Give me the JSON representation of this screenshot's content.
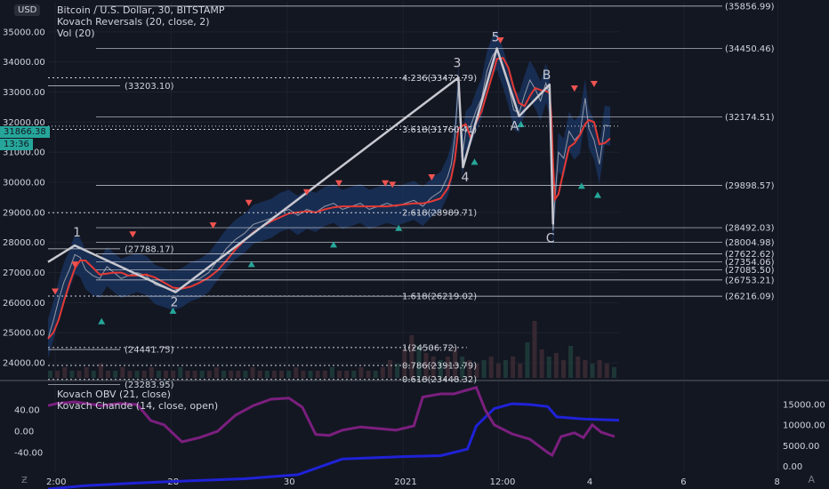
{
  "header": {
    "title": "Bitcoin / U.S. Dollar, 30, BITSTAMP",
    "indicator1": "Kovach Reversals (20, close, 2)",
    "indicator2": "Vol (20)",
    "currency": "USD"
  },
  "sub_header": {
    "indicator1": "Kovach OBV (21, close)",
    "indicator2": "Kovach Chande (14, close, open)"
  },
  "price_tag": {
    "price": "31866.38",
    "countdown": "13:36"
  },
  "colors": {
    "background": "#131722",
    "ma": "#e53935",
    "band": "#1e3f7a",
    "obv": "#1f22d6",
    "chande": "#7b1f7e",
    "zigzag": "#c8c8d0",
    "up": "#26a69a",
    "down": "#ef5350"
  },
  "chart_data": {
    "type": "line",
    "price_axis": {
      "ylim": [
        23500,
        36000
      ],
      "ticks": [
        "35000.00",
        "34000.00",
        "33000.00",
        "32000.00",
        "31000.00",
        "30000.00",
        "29000.00",
        "28000.00",
        "27000.00",
        "26000.00",
        "25000.00",
        "24000.00"
      ]
    },
    "x_ticks": [
      "2:00",
      "28",
      "30",
      "2021",
      "12:00",
      "4",
      "6",
      "8"
    ],
    "price_levels_right": [
      "(35856.99)",
      "(34450.46)",
      "(32174.51)",
      "(29898.57)",
      "(28492.03)",
      "(28004.98)",
      "(27622.62)",
      "(27354.06)",
      "(27085.50)",
      "(26753.21)",
      "(26216.09)"
    ],
    "price_levels_right_values": [
      35856.99,
      34450.46,
      32174.51,
      29898.57,
      28492.03,
      28004.98,
      27622.62,
      27354.06,
      27085.5,
      26753.21,
      26216.09
    ],
    "price_levels_left": [
      "(33203.10)",
      "(27788.17)",
      "(24441.75)",
      "(23283.95)"
    ],
    "price_levels_left_values": [
      33203.1,
      27788.17,
      24441.75,
      23283.95
    ],
    "fib_levels": [
      {
        "label": "4.236(33472.79)",
        "value": 33472.79
      },
      {
        "label": "3.618(31760.41)",
        "value": 31760.41
      },
      {
        "label": "2.618(28989.71)",
        "value": 28989.71
      },
      {
        "label": "1.618(26219.02)",
        "value": 26219.02
      },
      {
        "label": "1(24506.72)",
        "value": 24506.72
      },
      {
        "label": "0.786(23913.79)",
        "value": 23913.79
      },
      {
        "label": "0.618(23448.32)",
        "value": 23448.32
      }
    ],
    "zigzag": [
      {
        "t": 0,
        "price": 27350
      },
      {
        "t": 30,
        "price": 27900,
        "label": "1"
      },
      {
        "t": 143,
        "price": 26350,
        "label": "2"
      },
      {
        "t": 460,
        "price": 33480,
        "label": "3"
      },
      {
        "t": 465,
        "price": 30500,
        "label": "4"
      },
      {
        "t": 503,
        "price": 34450,
        "label": "5"
      },
      {
        "t": 528,
        "price": 32200,
        "label": "A"
      },
      {
        "t": 562,
        "price": 33250,
        "label": "B"
      },
      {
        "t": 566,
        "price": 28600,
        "label": "C"
      }
    ],
    "price_path": [
      [
        0,
        24800
      ],
      [
        6,
        25400
      ],
      [
        12,
        26100
      ],
      [
        18,
        26700
      ],
      [
        24,
        27100
      ],
      [
        30,
        27600
      ],
      [
        36,
        27500
      ],
      [
        42,
        27100
      ],
      [
        50,
        26900
      ],
      [
        58,
        26800
      ],
      [
        66,
        27200
      ],
      [
        74,
        27000
      ],
      [
        82,
        26800
      ],
      [
        90,
        26900
      ],
      [
        100,
        27000
      ],
      [
        110,
        26900
      ],
      [
        120,
        26600
      ],
      [
        130,
        26500
      ],
      [
        140,
        26400
      ],
      [
        150,
        26500
      ],
      [
        160,
        26700
      ],
      [
        170,
        26800
      ],
      [
        180,
        27000
      ],
      [
        190,
        27400
      ],
      [
        200,
        27800
      ],
      [
        210,
        28100
      ],
      [
        220,
        28300
      ],
      [
        230,
        28600
      ],
      [
        240,
        28700
      ],
      [
        250,
        28800
      ],
      [
        260,
        29000
      ],
      [
        270,
        29100
      ],
      [
        280,
        28900
      ],
      [
        290,
        29100
      ],
      [
        300,
        29000
      ],
      [
        310,
        29200
      ],
      [
        320,
        29300
      ],
      [
        330,
        29100
      ],
      [
        340,
        29200
      ],
      [
        350,
        29300
      ],
      [
        360,
        29100
      ],
      [
        370,
        29200
      ],
      [
        380,
        29300
      ],
      [
        390,
        29200
      ],
      [
        400,
        29300
      ],
      [
        410,
        29400
      ],
      [
        420,
        29200
      ],
      [
        430,
        29500
      ],
      [
        440,
        29700
      ],
      [
        448,
        30200
      ],
      [
        452,
        30600
      ],
      [
        456,
        31500
      ],
      [
        460,
        33300
      ],
      [
        464,
        30800
      ],
      [
        468,
        31700
      ],
      [
        474,
        31900
      ],
      [
        480,
        32400
      ],
      [
        486,
        32800
      ],
      [
        492,
        33700
      ],
      [
        498,
        34200
      ],
      [
        503,
        34400
      ],
      [
        510,
        33800
      ],
      [
        516,
        33200
      ],
      [
        522,
        32400
      ],
      [
        528,
        32300
      ],
      [
        534,
        32900
      ],
      [
        540,
        33400
      ],
      [
        546,
        33100
      ],
      [
        552,
        32700
      ],
      [
        558,
        33300
      ],
      [
        562,
        32900
      ],
      [
        564,
        30500
      ],
      [
        566,
        28400
      ],
      [
        568,
        29400
      ],
      [
        572,
        31000
      ],
      [
        578,
        30800
      ],
      [
        584,
        31700
      ],
      [
        590,
        31400
      ],
      [
        596,
        31600
      ],
      [
        602,
        32800
      ],
      [
        606,
        31800
      ],
      [
        612,
        31400
      ],
      [
        618,
        30600
      ],
      [
        624,
        31900
      ],
      [
        630,
        31866
      ]
    ],
    "volume": [
      2,
      2,
      3,
      2,
      2,
      3,
      2,
      4,
      2,
      2,
      3,
      2,
      2,
      2,
      3,
      2,
      2,
      2,
      3,
      2,
      2,
      2,
      2,
      3,
      2,
      2,
      2,
      2,
      3,
      2,
      2,
      2,
      2,
      2,
      3,
      2,
      2,
      2,
      2,
      3,
      2,
      2,
      2,
      3,
      2,
      2,
      3,
      5,
      4,
      8,
      12,
      9,
      7,
      6,
      5,
      6,
      8,
      6,
      5,
      4,
      5,
      6,
      4,
      5,
      6,
      4,
      10,
      16,
      8,
      6,
      7,
      5,
      9,
      6,
      5,
      4,
      5,
      4,
      3
    ],
    "obv": [
      [
        0,
        -5500
      ],
      [
        40,
        -4700
      ],
      [
        100,
        -4000
      ],
      [
        160,
        -3500
      ],
      [
        220,
        -3000
      ],
      [
        280,
        -2000
      ],
      [
        330,
        1800
      ],
      [
        400,
        2400
      ],
      [
        440,
        2600
      ],
      [
        470,
        4200
      ],
      [
        480,
        9800
      ],
      [
        500,
        14000
      ],
      [
        520,
        15200
      ],
      [
        540,
        15000
      ],
      [
        560,
        14500
      ],
      [
        570,
        12000
      ],
      [
        600,
        11500
      ],
      [
        640,
        11200
      ]
    ],
    "chande": [
      [
        0,
        48
      ],
      [
        10,
        52
      ],
      [
        30,
        55
      ],
      [
        60,
        48
      ],
      [
        80,
        52
      ],
      [
        100,
        50
      ],
      [
        115,
        20
      ],
      [
        130,
        12
      ],
      [
        150,
        -20
      ],
      [
        170,
        -12
      ],
      [
        190,
        0
      ],
      [
        210,
        30
      ],
      [
        230,
        48
      ],
      [
        250,
        60
      ],
      [
        270,
        62
      ],
      [
        285,
        45
      ],
      [
        300,
        -6
      ],
      [
        315,
        -8
      ],
      [
        330,
        2
      ],
      [
        350,
        8
      ],
      [
        370,
        5
      ],
      [
        390,
        2
      ],
      [
        410,
        10
      ],
      [
        420,
        64
      ],
      [
        440,
        70
      ],
      [
        455,
        70
      ],
      [
        465,
        75
      ],
      [
        480,
        82
      ],
      [
        490,
        40
      ],
      [
        500,
        12
      ],
      [
        520,
        -5
      ],
      [
        540,
        -15
      ],
      [
        560,
        -40
      ],
      [
        565,
        -45
      ],
      [
        575,
        -10
      ],
      [
        590,
        -3
      ],
      [
        600,
        -12
      ],
      [
        610,
        12
      ],
      [
        620,
        -2
      ],
      [
        635,
        -10
      ]
    ],
    "osc_axis": {
      "ticks": [
        "40.00",
        "0.00",
        "-40.00"
      ]
    },
    "obv_axis": {
      "ticks": [
        "15000.00",
        "10000.00",
        "5000.00",
        "0.00"
      ]
    },
    "markers_up": [
      [
        60,
        25400
      ],
      [
        140,
        25750
      ],
      [
        228,
        27300
      ],
      [
        320,
        27950
      ],
      [
        393,
        28500
      ],
      [
        478,
        30700
      ],
      [
        530,
        31950
      ],
      [
        598,
        29900
      ],
      [
        616,
        29600
      ]
    ],
    "markers_down": [
      [
        8,
        26350
      ],
      [
        30,
        27250
      ],
      [
        95,
        28250
      ],
      [
        185,
        28550
      ],
      [
        225,
        29300
      ],
      [
        290,
        29650
      ],
      [
        326,
        29950
      ],
      [
        378,
        29950
      ],
      [
        386,
        29900
      ],
      [
        430,
        30150
      ],
      [
        507,
        34700
      ],
      [
        590,
        33100
      ],
      [
        612,
        33250
      ]
    ]
  }
}
